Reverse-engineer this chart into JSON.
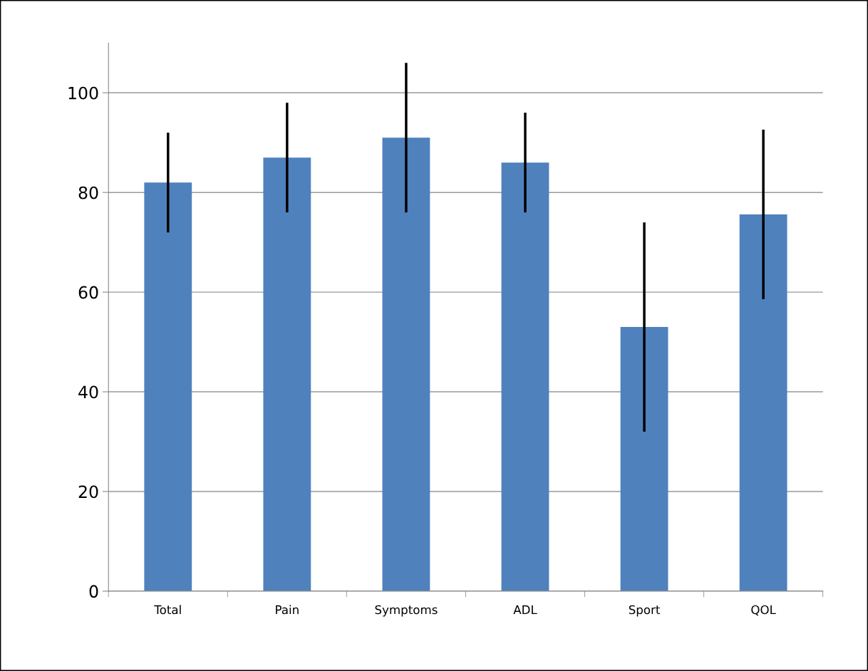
{
  "chart_data": {
    "type": "bar",
    "categories": [
      "Total",
      "Pain",
      "Symptoms",
      "ADL",
      "Sport",
      "QOL"
    ],
    "values": [
      82,
      87,
      91,
      86,
      53,
      75.6
    ],
    "errors": [
      10,
      11,
      15,
      10,
      21,
      17
    ],
    "color": "#4f81bd",
    "ylim": [
      0,
      110
    ],
    "yticks": [
      0,
      20,
      40,
      60,
      80,
      100
    ],
    "grid": "y"
  }
}
